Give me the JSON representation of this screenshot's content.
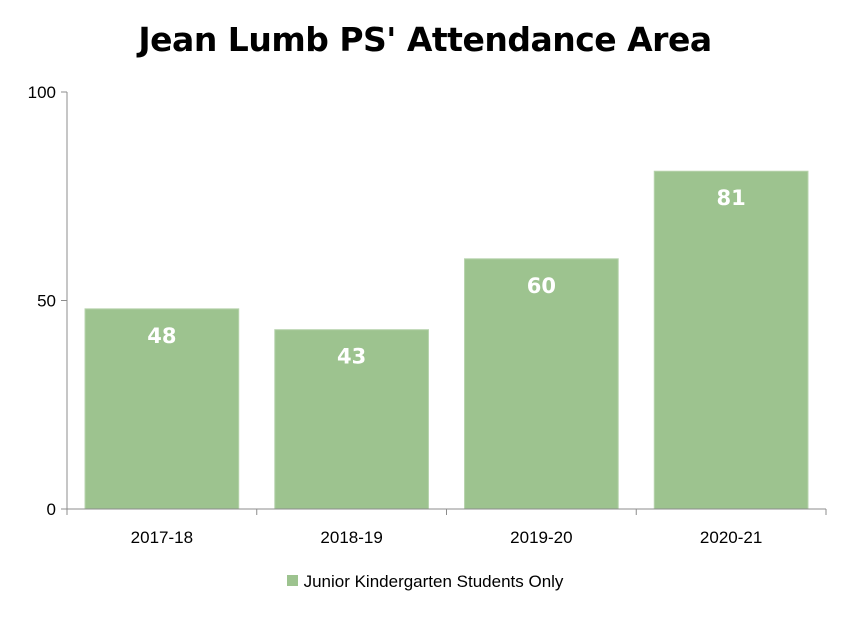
{
  "chart_data": {
    "type": "bar",
    "title": "Jean Lumb PS' Attendance Area",
    "categories": [
      "2017-18",
      "2018-19",
      "2019-20",
      "2020-21"
    ],
    "series": [
      {
        "name": "Junior Kindergarten Students Only",
        "values": [
          48,
          43,
          60,
          81
        ],
        "color": "#9dc38f"
      }
    ],
    "data_labels": [
      "48",
      "43",
      "60",
      "81"
    ],
    "ylim": [
      0,
      100
    ],
    "yticks": [
      "0",
      "50",
      "100"
    ],
    "xlabel": "",
    "ylabel": "",
    "grid": false,
    "legend_position": "bottom"
  }
}
